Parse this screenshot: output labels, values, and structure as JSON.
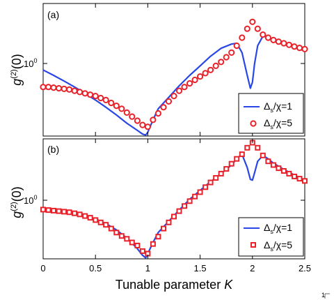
{
  "chart_data": [
    {
      "type": "line",
      "panel_label": "(a)",
      "ylabel_main": "g",
      "ylabel_sup": "(2)",
      "ylabel_rest": "(0)",
      "ytick_label": "10",
      "ytick_exp": "0",
      "y_scale": "log",
      "xlim": [
        0,
        2.5
      ],
      "ylim": [
        0.55,
        1.9
      ],
      "grid": false,
      "legend_position": "bottom-right",
      "series": [
        {
          "name": "Δs/χ=1",
          "name_parts": [
            "Δ",
            "s",
            "/χ=1"
          ],
          "style": "line",
          "color": "#2946e6",
          "x": [
            0,
            0.1,
            0.2,
            0.3,
            0.4,
            0.5,
            0.6,
            0.7,
            0.8,
            0.9,
            0.95,
            0.98,
            1.0,
            1.05,
            1.1,
            1.2,
            1.3,
            1.4,
            1.5,
            1.6,
            1.7,
            1.8,
            1.85,
            1.9,
            1.95,
            1.98,
            2.0,
            2.02,
            2.05,
            2.1,
            2.15,
            2.2,
            2.3,
            2.4,
            2.5
          ],
          "y": [
            1.02,
            0.97,
            0.92,
            0.87,
            0.82,
            0.77,
            0.72,
            0.67,
            0.62,
            0.58,
            0.56,
            0.555,
            0.57,
            0.64,
            0.71,
            0.79,
            0.88,
            0.97,
            1.06,
            1.16,
            1.25,
            1.3,
            1.31,
            1.2,
            0.97,
            0.86,
            0.91,
            1.08,
            1.28,
            1.4,
            1.39,
            1.35,
            1.3,
            1.26,
            1.22
          ]
        },
        {
          "name": "Δs/χ=5",
          "name_parts": [
            "Δ",
            "s",
            "/χ=5"
          ],
          "style": "circle",
          "color": "#e8222a",
          "x": [
            0,
            0.05,
            0.1,
            0.15,
            0.2,
            0.25,
            0.3,
            0.35,
            0.4,
            0.45,
            0.5,
            0.55,
            0.6,
            0.65,
            0.7,
            0.75,
            0.8,
            0.85,
            0.9,
            0.95,
            1.0,
            1.05,
            1.1,
            1.15,
            1.2,
            1.25,
            1.3,
            1.35,
            1.4,
            1.45,
            1.5,
            1.55,
            1.6,
            1.65,
            1.7,
            1.75,
            1.8,
            1.85,
            1.9,
            1.95,
            2.0,
            2.05,
            2.1,
            2.15,
            2.2,
            2.25,
            2.3,
            2.35,
            2.4,
            2.45,
            2.5
          ],
          "y": [
            0.87,
            0.87,
            0.865,
            0.86,
            0.855,
            0.85,
            0.84,
            0.83,
            0.82,
            0.81,
            0.8,
            0.785,
            0.77,
            0.75,
            0.73,
            0.71,
            0.685,
            0.66,
            0.635,
            0.61,
            0.6,
            0.64,
            0.68,
            0.72,
            0.76,
            0.8,
            0.84,
            0.87,
            0.9,
            0.93,
            0.96,
            0.99,
            1.02,
            1.06,
            1.1,
            1.15,
            1.2,
            1.28,
            1.38,
            1.5,
            1.6,
            1.5,
            1.42,
            1.38,
            1.35,
            1.33,
            1.31,
            1.29,
            1.27,
            1.255,
            1.24
          ]
        }
      ]
    },
    {
      "type": "line",
      "panel_label": "(b)",
      "ylabel_main": "g",
      "ylabel_sup": "(2)",
      "ylabel_rest": "(0)",
      "ytick_label": "10",
      "ytick_exp": "0",
      "y_scale": "log",
      "xlim": [
        0,
        2.5
      ],
      "ylim": [
        0.5,
        1.9
      ],
      "grid": false,
      "legend_position": "bottom-right",
      "series": [
        {
          "name": "Δs/χ=1",
          "name_parts": [
            "Δ",
            "s",
            "/χ=1"
          ],
          "style": "line",
          "color": "#2946e6",
          "x": [
            0,
            0.1,
            0.2,
            0.3,
            0.4,
            0.5,
            0.6,
            0.7,
            0.8,
            0.9,
            0.95,
            0.98,
            1.0,
            1.05,
            1.1,
            1.2,
            1.3,
            1.4,
            1.5,
            1.6,
            1.7,
            1.8,
            1.85,
            1.9,
            1.95,
            1.98,
            2.0,
            2.02,
            2.05,
            2.1,
            2.15,
            2.2,
            2.3,
            2.4,
            2.5
          ],
          "y": [
            0.86,
            0.85,
            0.84,
            0.83,
            0.81,
            0.78,
            0.74,
            0.69,
            0.63,
            0.56,
            0.52,
            0.505,
            0.53,
            0.6,
            0.67,
            0.76,
            0.86,
            0.97,
            1.07,
            1.18,
            1.29,
            1.42,
            1.52,
            1.6,
            1.38,
            1.21,
            1.2,
            1.3,
            1.48,
            1.58,
            1.52,
            1.45,
            1.35,
            1.27,
            1.2
          ]
        },
        {
          "name": "Δs/χ=5",
          "name_parts": [
            "Δ",
            "s",
            "/χ=5"
          ],
          "style": "square",
          "color": "#e8222a",
          "x": [
            0,
            0.05,
            0.1,
            0.15,
            0.2,
            0.25,
            0.3,
            0.35,
            0.4,
            0.45,
            0.5,
            0.55,
            0.6,
            0.65,
            0.7,
            0.75,
            0.8,
            0.85,
            0.9,
            0.95,
            1.0,
            1.05,
            1.1,
            1.15,
            1.2,
            1.25,
            1.3,
            1.35,
            1.4,
            1.45,
            1.5,
            1.55,
            1.6,
            1.65,
            1.7,
            1.75,
            1.8,
            1.85,
            1.9,
            1.95,
            2.0,
            2.05,
            2.1,
            2.15,
            2.2,
            2.25,
            2.3,
            2.35,
            2.4,
            2.45,
            2.5
          ],
          "y": [
            0.865,
            0.86,
            0.855,
            0.85,
            0.845,
            0.84,
            0.83,
            0.82,
            0.805,
            0.79,
            0.77,
            0.75,
            0.73,
            0.7,
            0.67,
            0.645,
            0.625,
            0.6,
            0.58,
            0.545,
            0.53,
            0.59,
            0.64,
            0.7,
            0.75,
            0.8,
            0.85,
            0.9,
            0.95,
            1.0,
            1.05,
            1.11,
            1.17,
            1.23,
            1.29,
            1.36,
            1.44,
            1.52,
            1.6,
            1.72,
            1.82,
            1.72,
            1.58,
            1.48,
            1.42,
            1.37,
            1.33,
            1.29,
            1.25,
            1.22,
            1.19
          ]
        }
      ]
    }
  ],
  "x_axis": {
    "ticks": [
      0,
      0.5,
      1,
      1.5,
      2,
      2.5
    ],
    "tick_labels": [
      "0",
      "0.5",
      "1",
      "1.5",
      "2",
      "2.5"
    ],
    "label_text": "Tunable parameter",
    "label_var": "K"
  },
  "corner_fragment": "1"
}
